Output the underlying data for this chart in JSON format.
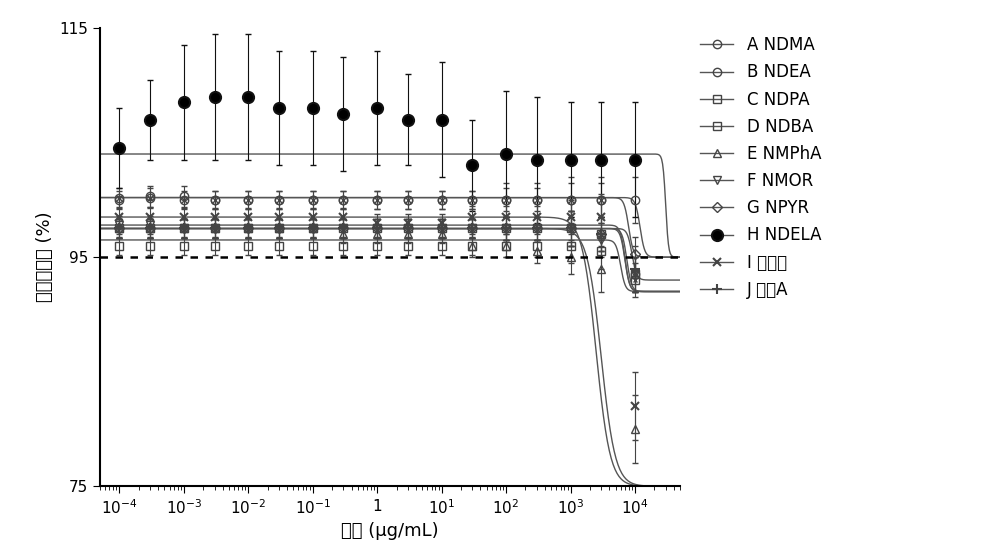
{
  "title": "",
  "xlabel": "浓度 (μg/mL)",
  "ylabel": "细胞存活率 (%)",
  "ylim": [
    75,
    115
  ],
  "yticks": [
    75,
    95,
    115
  ],
  "dotted_line_y": 95,
  "xmin": 5e-05,
  "xmax": 50000.0,
  "xticks": [
    0.0001,
    0.001,
    0.01,
    0.1,
    1.0,
    10.0,
    100.0,
    1000.0,
    10000.0
  ],
  "series": [
    {
      "label": "A NDMA",
      "marker": "o",
      "marker_fill": "none",
      "marker_size": 6,
      "line_color": "#555555",
      "marker_edgecolor": "#444444",
      "marker_lw": 1.0,
      "td50": 12000,
      "top": 100.2,
      "bottom": 95.0,
      "hill": 12,
      "x_data": [
        0.0001,
        0.0003,
        0.001,
        0.003,
        0.01,
        0.03,
        0.1,
        0.3,
        1.0,
        3.0,
        10,
        30,
        100,
        300,
        1000,
        3000,
        10000
      ],
      "y_data": [
        100.0,
        100.3,
        100.3,
        100.0,
        100.0,
        100.0,
        100.0,
        100.0,
        100.0,
        100.0,
        100.0,
        100.0,
        100.0,
        100.0,
        100.0,
        100.0,
        100.0
      ],
      "y_err": [
        0.8,
        0.9,
        0.9,
        0.8,
        0.8,
        0.8,
        0.8,
        0.8,
        0.8,
        0.8,
        0.8,
        0.8,
        1.5,
        1.5,
        2.0,
        2.0,
        2.0
      ]
    },
    {
      "label": "B NDEA",
      "marker": "circle_x",
      "marker_fill": "none",
      "marker_size": 6,
      "line_color": "#555555",
      "marker_edgecolor": "#444444",
      "marker_lw": 1.0,
      "td50": 8000,
      "top": 100.2,
      "bottom": 95.0,
      "hill": 12,
      "x_data": [
        0.0001,
        0.0003,
        0.001,
        0.003,
        0.01,
        0.03,
        0.1,
        0.3,
        1.0,
        3.0,
        10,
        30,
        100,
        300,
        1000,
        3000,
        10000
      ],
      "y_data": [
        100.2,
        100.2,
        100.0,
        100.0,
        100.0,
        100.0,
        100.0,
        100.0,
        100.0,
        100.0,
        100.0,
        100.0,
        100.0,
        100.0,
        100.0,
        100.0,
        93.5
      ],
      "y_err": [
        0.8,
        0.8,
        0.8,
        0.8,
        0.8,
        0.8,
        0.8,
        0.8,
        0.8,
        0.8,
        0.8,
        0.8,
        1.0,
        1.0,
        1.5,
        1.5,
        1.5
      ]
    },
    {
      "label": "C NDPA",
      "marker": "s",
      "marker_fill": "none",
      "marker_size": 6,
      "line_color": "#555555",
      "marker_edgecolor": "#444444",
      "marker_lw": 1.0,
      "td50": 6000,
      "top": 96.5,
      "bottom": 92.0,
      "hill": 12,
      "x_data": [
        0.0001,
        0.0003,
        0.001,
        0.003,
        0.01,
        0.03,
        0.1,
        0.3,
        1.0,
        3.0,
        10,
        30,
        100,
        300,
        1000,
        3000,
        10000
      ],
      "y_data": [
        96.0,
        96.0,
        96.0,
        96.0,
        96.0,
        96.0,
        96.0,
        96.0,
        96.0,
        96.0,
        96.0,
        96.0,
        96.0,
        96.0,
        96.0,
        95.5,
        93.5
      ],
      "y_err": [
        0.8,
        0.8,
        0.8,
        0.8,
        0.8,
        0.8,
        0.8,
        0.8,
        0.8,
        0.8,
        0.8,
        0.8,
        1.0,
        1.0,
        1.5,
        1.5,
        1.5
      ]
    },
    {
      "label": "D NDBA",
      "marker": "square_x",
      "marker_fill": "none",
      "marker_size": 6,
      "line_color": "#555555",
      "marker_edgecolor": "#444444",
      "marker_lw": 1.0,
      "td50": 7000,
      "top": 97.5,
      "bottom": 92.0,
      "hill": 12,
      "x_data": [
        0.0001,
        0.0003,
        0.001,
        0.003,
        0.01,
        0.03,
        0.1,
        0.3,
        1.0,
        3.0,
        10,
        30,
        100,
        300,
        1000,
        3000,
        10000
      ],
      "y_data": [
        97.5,
        97.5,
        97.5,
        97.5,
        97.5,
        97.5,
        97.5,
        97.5,
        97.5,
        97.5,
        97.5,
        97.5,
        97.5,
        97.5,
        97.5,
        97.0,
        93.0
      ],
      "y_err": [
        0.8,
        0.8,
        0.8,
        0.8,
        0.8,
        0.8,
        0.8,
        0.8,
        0.8,
        0.8,
        0.8,
        0.8,
        1.0,
        1.0,
        1.5,
        1.5,
        1.5
      ]
    },
    {
      "label": "E NMPhA",
      "marker": "^",
      "marker_fill": "none",
      "marker_size": 6,
      "line_color": "#555555",
      "marker_edgecolor": "#444444",
      "marker_lw": 1.0,
      "td50": 3000,
      "top": 97.5,
      "bottom": 75.0,
      "hill": 4,
      "x_data": [
        0.0001,
        0.0003,
        0.001,
        0.003,
        0.01,
        0.03,
        0.1,
        0.3,
        1.0,
        3.0,
        10,
        30,
        100,
        300,
        1000,
        3000,
        10000
      ],
      "y_data": [
        97.5,
        97.5,
        97.5,
        97.5,
        97.5,
        97.5,
        97.5,
        97.0,
        97.0,
        97.0,
        97.0,
        96.0,
        96.0,
        95.5,
        95.0,
        94.0,
        80.0
      ],
      "y_err": [
        0.8,
        0.8,
        0.8,
        0.8,
        0.8,
        0.8,
        0.8,
        0.8,
        0.8,
        0.8,
        0.8,
        1.0,
        1.0,
        1.0,
        1.5,
        2.0,
        3.0
      ]
    },
    {
      "label": "F NMOR",
      "marker": "v",
      "marker_fill": "none",
      "marker_size": 6,
      "line_color": "#555555",
      "marker_edgecolor": "#444444",
      "marker_lw": 1.0,
      "td50": 7000,
      "top": 97.8,
      "bottom": 92.0,
      "hill": 12,
      "x_data": [
        0.0001,
        0.0003,
        0.001,
        0.003,
        0.01,
        0.03,
        0.1,
        0.3,
        1.0,
        3.0,
        10,
        30,
        100,
        300,
        1000,
        3000,
        10000
      ],
      "y_data": [
        97.8,
        97.8,
        97.5,
        97.5,
        97.5,
        97.5,
        97.5,
        97.5,
        97.5,
        97.5,
        97.5,
        97.5,
        97.5,
        97.5,
        97.5,
        96.5,
        93.5
      ],
      "y_err": [
        0.8,
        0.8,
        0.8,
        0.8,
        0.8,
        0.8,
        0.8,
        0.8,
        0.8,
        0.8,
        0.8,
        0.8,
        1.0,
        1.0,
        1.5,
        1.5,
        1.5
      ]
    },
    {
      "label": "G NPYR",
      "marker": "D",
      "marker_fill": "none",
      "marker_size": 5,
      "line_color": "#555555",
      "marker_edgecolor": "#444444",
      "marker_lw": 1.0,
      "td50": 9000,
      "top": 97.5,
      "bottom": 93.0,
      "hill": 12,
      "x_data": [
        0.0001,
        0.0003,
        0.001,
        0.003,
        0.01,
        0.03,
        0.1,
        0.3,
        1.0,
        3.0,
        10,
        30,
        100,
        300,
        1000,
        3000,
        10000
      ],
      "y_data": [
        97.5,
        97.5,
        97.5,
        97.5,
        97.5,
        97.5,
        97.5,
        97.5,
        97.5,
        97.5,
        97.5,
        97.5,
        97.5,
        97.5,
        97.5,
        97.0,
        95.3
      ],
      "y_err": [
        0.8,
        0.8,
        0.8,
        0.8,
        0.8,
        0.8,
        0.8,
        0.8,
        0.8,
        0.8,
        0.8,
        0.8,
        1.0,
        1.0,
        1.5,
        1.5,
        1.5
      ]
    },
    {
      "label": "H NDELA",
      "marker": "o",
      "marker_fill": "black",
      "marker_size": 8,
      "line_color": "#555555",
      "marker_edgecolor": "#111111",
      "marker_lw": 1.5,
      "td50": 30000,
      "top": 104.0,
      "bottom": 95.0,
      "hill": 20,
      "x_data": [
        0.0001,
        0.0003,
        0.001,
        0.003,
        0.01,
        0.03,
        0.1,
        0.3,
        1.0,
        3.0,
        10,
        30,
        100,
        300,
        1000,
        3000,
        10000
      ],
      "y_data": [
        104.5,
        107.0,
        108.5,
        109.0,
        109.0,
        108.0,
        108.0,
        107.5,
        108.0,
        107.0,
        107.0,
        103.0,
        104.0,
        103.5,
        103.5,
        103.5,
        103.5
      ],
      "y_err": [
        3.5,
        3.5,
        5.0,
        5.5,
        5.5,
        5.0,
        5.0,
        5.0,
        5.0,
        4.0,
        5.0,
        4.0,
        5.5,
        5.5,
        5.0,
        5.0,
        5.0
      ]
    },
    {
      "label": "I 水杨酸",
      "marker": "x",
      "marker_fill": "none",
      "marker_size": 6,
      "line_color": "#555555",
      "marker_edgecolor": "#444444",
      "marker_lw": 1.5,
      "td50": 2500,
      "top": 98.5,
      "bottom": 75.0,
      "hill": 4,
      "x_data": [
        0.0001,
        0.0003,
        0.001,
        0.003,
        0.01,
        0.03,
        0.1,
        0.3,
        1.0,
        3.0,
        10,
        30,
        100,
        300,
        1000,
        3000,
        10000
      ],
      "y_data": [
        98.5,
        98.5,
        98.5,
        98.5,
        98.5,
        98.5,
        98.5,
        98.5,
        98.0,
        98.0,
        98.0,
        98.5,
        98.5,
        98.5,
        98.5,
        98.5,
        82.0
      ],
      "y_err": [
        0.8,
        0.8,
        0.8,
        0.8,
        0.8,
        0.8,
        0.8,
        0.8,
        0.8,
        0.8,
        0.8,
        1.0,
        1.0,
        1.0,
        1.5,
        2.0,
        3.0
      ]
    },
    {
      "label": "J 双酚A",
      "marker": "+",
      "marker_fill": "none",
      "marker_size": 7,
      "line_color": "#555555",
      "marker_edgecolor": "#444444",
      "marker_lw": 1.5,
      "td50": 7500,
      "top": 97.5,
      "bottom": 92.0,
      "hill": 12,
      "x_data": [
        0.0001,
        0.0003,
        0.001,
        0.003,
        0.01,
        0.03,
        0.1,
        0.3,
        1.0,
        3.0,
        10,
        30,
        100,
        300,
        1000,
        3000,
        10000
      ],
      "y_data": [
        97.5,
        97.5,
        97.5,
        97.5,
        97.5,
        97.5,
        97.5,
        97.5,
        97.5,
        97.5,
        97.5,
        97.5,
        97.5,
        97.5,
        97.5,
        97.0,
        94.0
      ],
      "y_err": [
        0.8,
        0.8,
        0.8,
        0.8,
        0.8,
        0.8,
        0.8,
        0.8,
        0.8,
        0.8,
        0.8,
        0.8,
        1.0,
        1.0,
        1.5,
        1.5,
        2.0
      ]
    }
  ],
  "background_color": "#ffffff"
}
